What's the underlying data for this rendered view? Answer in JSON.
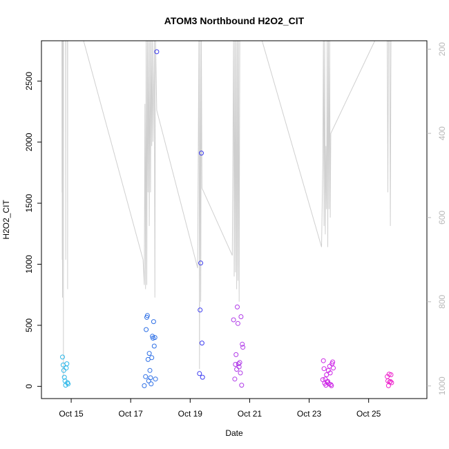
{
  "chart_data": {
    "type": "scatter",
    "title": "ATOM3 Northbound H2O2_CIT",
    "xlabel": "Date",
    "ylabel": "H2O2_CIT",
    "xlim": [
      "2016-10-14T00:00",
      "2016-10-26T23:00"
    ],
    "ylim": [
      -100,
      2830
    ],
    "x_ticks": [
      {
        "date": "2016-10-15",
        "label": "Oct 15"
      },
      {
        "date": "2016-10-17",
        "label": "Oct 17"
      },
      {
        "date": "2016-10-19",
        "label": "Oct 19"
      },
      {
        "date": "2016-10-21",
        "label": "Oct 21"
      },
      {
        "date": "2016-10-23",
        "label": "Oct 23"
      },
      {
        "date": "2016-10-25",
        "label": "Oct 25"
      }
    ],
    "y_ticks": [
      0,
      500,
      1000,
      1500,
      2000,
      2500
    ],
    "right_axis": {
      "reversed": true,
      "ylim": [
        1030,
        180
      ],
      "ticks": [
        200,
        400,
        600,
        800,
        1000
      ],
      "color": "#b8b8b8"
    },
    "grid": false,
    "legend": "none",
    "series": [
      {
        "color": "#29b6e8",
        "points": [
          [
            "2016-10-14T17:00",
            240
          ],
          [
            "2016-10-14T17:30",
            175
          ],
          [
            "2016-10-14T18:00",
            130
          ],
          [
            "2016-10-14T18:30",
            75
          ],
          [
            "2016-10-14T19:00",
            45
          ],
          [
            "2016-10-14T19:30",
            10
          ],
          [
            "2016-10-14T20:00",
            150
          ],
          [
            "2016-10-14T20:30",
            185
          ],
          [
            "2016-10-14T21:00",
            30
          ],
          [
            "2016-10-14T21:30",
            20
          ]
        ]
      },
      {
        "color": "#2d6fe6",
        "points": [
          [
            "2016-10-17T11:00",
            5
          ],
          [
            "2016-10-17T12:00",
            80
          ],
          [
            "2016-10-17T12:30",
            465
          ],
          [
            "2016-10-17T13:00",
            565
          ],
          [
            "2016-10-17T13:30",
            580
          ],
          [
            "2016-10-17T14:00",
            220
          ],
          [
            "2016-10-17T14:30",
            45
          ],
          [
            "2016-10-17T15:00",
            270
          ],
          [
            "2016-10-17T15:30",
            130
          ],
          [
            "2016-10-17T16:00",
            70
          ],
          [
            "2016-10-17T16:30",
            20
          ],
          [
            "2016-10-17T17:00",
            235
          ],
          [
            "2016-10-17T17:30",
            410
          ],
          [
            "2016-10-17T18:00",
            395
          ],
          [
            "2016-10-17T18:30",
            530
          ],
          [
            "2016-10-17T19:00",
            330
          ],
          [
            "2016-10-17T19:30",
            400
          ],
          [
            "2016-10-17T20:00",
            60
          ]
        ]
      },
      {
        "color": "#3a3af0",
        "points": [
          [
            "2016-10-17T21:00",
            2740
          ],
          [
            "2016-10-19T09:00",
            1910
          ],
          [
            "2016-10-19T08:30",
            1010
          ],
          [
            "2016-10-19T08:00",
            625
          ],
          [
            "2016-10-19T09:30",
            355
          ],
          [
            "2016-10-19T07:30",
            105
          ],
          [
            "2016-10-19T10:00",
            75
          ]
        ]
      },
      {
        "color": "#b03ae8",
        "points": [
          [
            "2016-10-20T11:00",
            545
          ],
          [
            "2016-10-20T12:00",
            60
          ],
          [
            "2016-10-20T12:30",
            180
          ],
          [
            "2016-10-20T13:00",
            260
          ],
          [
            "2016-10-20T13:30",
            140
          ],
          [
            "2016-10-20T14:00",
            650
          ],
          [
            "2016-10-20T14:30",
            515
          ],
          [
            "2016-10-20T15:00",
            185
          ],
          [
            "2016-10-20T15:30",
            160
          ],
          [
            "2016-10-20T16:00",
            195
          ],
          [
            "2016-10-20T16:30",
            110
          ],
          [
            "2016-10-20T17:00",
            570
          ],
          [
            "2016-10-20T17:30",
            10
          ],
          [
            "2016-10-20T18:00",
            345
          ],
          [
            "2016-10-20T18:30",
            320
          ]
        ]
      },
      {
        "color": "#cc22e6",
        "points": [
          [
            "2016-10-23T11:00",
            55
          ],
          [
            "2016-10-23T11:30",
            210
          ],
          [
            "2016-10-23T12:00",
            145
          ],
          [
            "2016-10-23T12:30",
            25
          ],
          [
            "2016-10-23T13:00",
            60
          ],
          [
            "2016-10-23T13:30",
            10
          ],
          [
            "2016-10-23T14:00",
            95
          ],
          [
            "2016-10-23T14:30",
            35
          ],
          [
            "2016-10-23T15:00",
            40
          ],
          [
            "2016-10-23T15:30",
            130
          ],
          [
            "2016-10-23T16:00",
            20
          ],
          [
            "2016-10-23T16:30",
            165
          ],
          [
            "2016-10-23T17:00",
            110
          ],
          [
            "2016-10-23T17:30",
            15
          ],
          [
            "2016-10-23T18:00",
            5
          ],
          [
            "2016-10-23T18:30",
            185
          ],
          [
            "2016-10-23T19:00",
            200
          ],
          [
            "2016-10-23T19:30",
            150
          ]
        ]
      },
      {
        "color": "#ee22cc",
        "points": [
          [
            "2016-10-25T15:00",
            80
          ],
          [
            "2016-10-25T15:30",
            45
          ],
          [
            "2016-10-25T16:00",
            5
          ],
          [
            "2016-10-25T16:30",
            100
          ],
          [
            "2016-10-25T17:00",
            35
          ],
          [
            "2016-10-25T17:30",
            40
          ],
          [
            "2016-10-25T18:00",
            95
          ],
          [
            "2016-10-25T18:30",
            30
          ]
        ]
      }
    ],
    "altitude_trace": {
      "color": "#cfcfcf",
      "axis": "right",
      "points": [
        [
          "2016-10-14T16:30",
          180
        ],
        [
          "2016-10-14T16:36",
          540
        ],
        [
          "2016-10-14T16:42",
          180
        ],
        [
          "2016-10-14T16:48",
          700
        ],
        [
          "2016-10-14T16:54",
          480
        ],
        [
          "2016-10-14T17:00",
          790
        ],
        [
          "2016-10-14T17:06",
          180
        ],
        [
          "2016-10-14T17:36",
          180
        ],
        [
          "2016-10-14T17:42",
          980
        ],
        [
          "2016-10-14T17:48",
          180
        ],
        [
          "2016-10-14T19:30",
          180
        ],
        [
          "2016-10-14T19:36",
          700
        ],
        [
          "2016-10-14T19:42",
          180
        ],
        [
          "2016-10-14T21:00",
          180
        ],
        [
          "2016-10-14T21:06",
          770
        ],
        [
          "2016-10-14T21:12",
          180
        ],
        [
          "2016-10-15T10:00",
          180
        ],
        [
          "2016-10-17T10:00",
          700
        ],
        [
          "2016-10-17T11:00",
          760
        ],
        [
          "2016-10-17T11:30",
          330
        ],
        [
          "2016-10-17T12:00",
          770
        ],
        [
          "2016-10-17T12:30",
          180
        ],
        [
          "2016-10-17T13:00",
          760
        ],
        [
          "2016-10-17T13:30",
          180
        ],
        [
          "2016-10-17T14:00",
          540
        ],
        [
          "2016-10-17T14:30",
          180
        ],
        [
          "2016-10-17T15:00",
          620
        ],
        [
          "2016-10-17T15:30",
          180
        ],
        [
          "2016-10-17T16:00",
          540
        ],
        [
          "2016-10-17T16:30",
          180
        ],
        [
          "2016-10-17T17:00",
          430
        ],
        [
          "2016-10-17T17:30",
          180
        ],
        [
          "2016-10-17T18:00",
          420
        ],
        [
          "2016-10-17T19:00",
          180
        ],
        [
          "2016-10-17T19:30",
          790
        ],
        [
          "2016-10-17T20:00",
          170
        ],
        [
          "2016-10-17T21:00",
          345
        ],
        [
          "2016-10-19T06:00",
          720
        ],
        [
          "2016-10-19T07:00",
          180
        ],
        [
          "2016-10-19T07:30",
          960
        ],
        [
          "2016-10-19T08:00",
          180
        ],
        [
          "2016-10-19T08:30",
          800
        ],
        [
          "2016-10-19T09:00",
          180
        ],
        [
          "2016-10-19T09:30",
          530
        ],
        [
          "2016-10-20T10:00",
          690
        ],
        [
          "2016-10-20T11:00",
          180
        ],
        [
          "2016-10-20T11:30",
          740
        ],
        [
          "2016-10-20T12:00",
          180
        ],
        [
          "2016-10-20T12:30",
          730
        ],
        [
          "2016-10-20T13:00",
          180
        ],
        [
          "2016-10-20T13:30",
          770
        ],
        [
          "2016-10-20T14:00",
          180
        ],
        [
          "2016-10-20T14:30",
          750
        ],
        [
          "2016-10-20T15:00",
          180
        ],
        [
          "2016-10-20T15:30",
          800
        ],
        [
          "2016-10-20T16:00",
          180
        ],
        [
          "2016-10-20T17:00",
          180
        ],
        [
          "2016-10-20T19:00",
          180
        ],
        [
          "2016-10-21T10:00",
          180
        ],
        [
          "2016-10-23T10:00",
          670
        ],
        [
          "2016-10-23T11:00",
          470
        ],
        [
          "2016-10-23T11:30",
          180
        ],
        [
          "2016-10-23T12:00",
          620
        ],
        [
          "2016-10-23T12:30",
          180
        ],
        [
          "2016-10-23T13:00",
          640
        ],
        [
          "2016-10-23T13:30",
          430
        ],
        [
          "2016-10-23T14:00",
          580
        ],
        [
          "2016-10-23T14:30",
          180
        ],
        [
          "2016-10-23T15:00",
          670
        ],
        [
          "2016-10-23T15:30",
          180
        ],
        [
          "2016-10-23T16:00",
          580
        ],
        [
          "2016-10-23T16:30",
          180
        ],
        [
          "2016-10-23T17:00",
          600
        ],
        [
          "2016-10-23T17:30",
          400
        ],
        [
          "2016-10-25T05:00",
          180
        ],
        [
          "2016-10-25T15:00",
          180
        ],
        [
          "2016-10-25T15:30",
          540
        ],
        [
          "2016-10-25T16:00",
          180
        ],
        [
          "2016-10-25T16:30",
          180
        ],
        [
          "2016-10-25T17:00",
          180
        ],
        [
          "2016-10-25T17:30",
          620
        ],
        [
          "2016-10-25T18:00",
          180
        ]
      ]
    }
  }
}
